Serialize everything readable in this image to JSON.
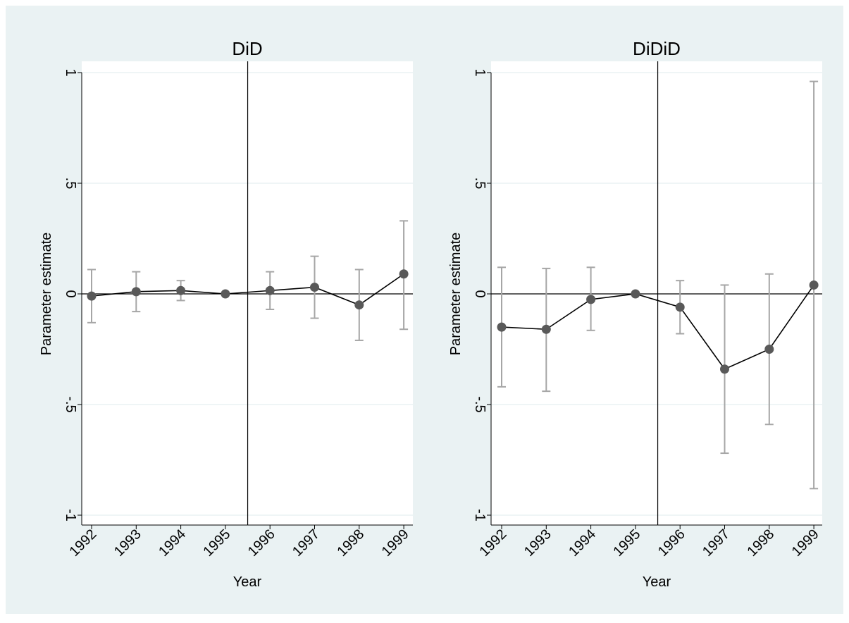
{
  "colors": {
    "outer_background": "#eaf2f3",
    "plot_background": "#ffffff",
    "gridline": "#eaf2f3",
    "marker": "#595959",
    "ci_whisker": "#a6a6a6",
    "line": "#000000"
  },
  "chart_data": [
    {
      "type": "scatter",
      "title": "DiD",
      "xlabel": "Year",
      "ylabel": "Parameter estimate",
      "categories": [
        "1992",
        "1993",
        "1994",
        "1995",
        "1996",
        "1997",
        "1998",
        "1999"
      ],
      "ylim": [
        -1,
        1
      ],
      "ytick_values": [
        -1,
        -0.5,
        0,
        0.5,
        1
      ],
      "ytick_labels": [
        "-1",
        "-.5",
        "0",
        ".5",
        "1"
      ],
      "grid": true,
      "reference_line_y": 0,
      "event_line_between": [
        "1995",
        "1996"
      ],
      "series": [
        {
          "estimate": [
            -0.01,
            0.01,
            0.015,
            0.0,
            0.015,
            0.03,
            -0.05,
            0.09
          ],
          "ci_low": [
            -0.13,
            -0.08,
            -0.03,
            0.0,
            -0.07,
            -0.11,
            -0.21,
            -0.16
          ],
          "ci_high": [
            0.11,
            0.1,
            0.06,
            0.0,
            0.1,
            0.17,
            0.11,
            0.33
          ]
        }
      ]
    },
    {
      "type": "scatter",
      "title": "DiDiD",
      "xlabel": "Year",
      "ylabel": "Parameter estimate",
      "categories": [
        "1992",
        "1993",
        "1994",
        "1995",
        "1996",
        "1997",
        "1998",
        "1999"
      ],
      "ylim": [
        -1,
        1
      ],
      "ytick_values": [
        -1,
        -0.5,
        0,
        0.5,
        1
      ],
      "ytick_labels": [
        "-1",
        "-.5",
        "0",
        ".5",
        "1"
      ],
      "grid": true,
      "reference_line_y": 0,
      "event_line_between": [
        "1995",
        "1996"
      ],
      "series": [
        {
          "estimate": [
            -0.15,
            -0.16,
            -0.025,
            0.0,
            -0.06,
            -0.34,
            -0.25,
            0.04
          ],
          "ci_low": [
            -0.42,
            -0.44,
            -0.165,
            0.0,
            -0.18,
            -0.72,
            -0.59,
            -0.88
          ],
          "ci_high": [
            0.12,
            0.115,
            0.12,
            0.0,
            0.06,
            0.04,
            0.09,
            0.96
          ]
        }
      ]
    }
  ]
}
